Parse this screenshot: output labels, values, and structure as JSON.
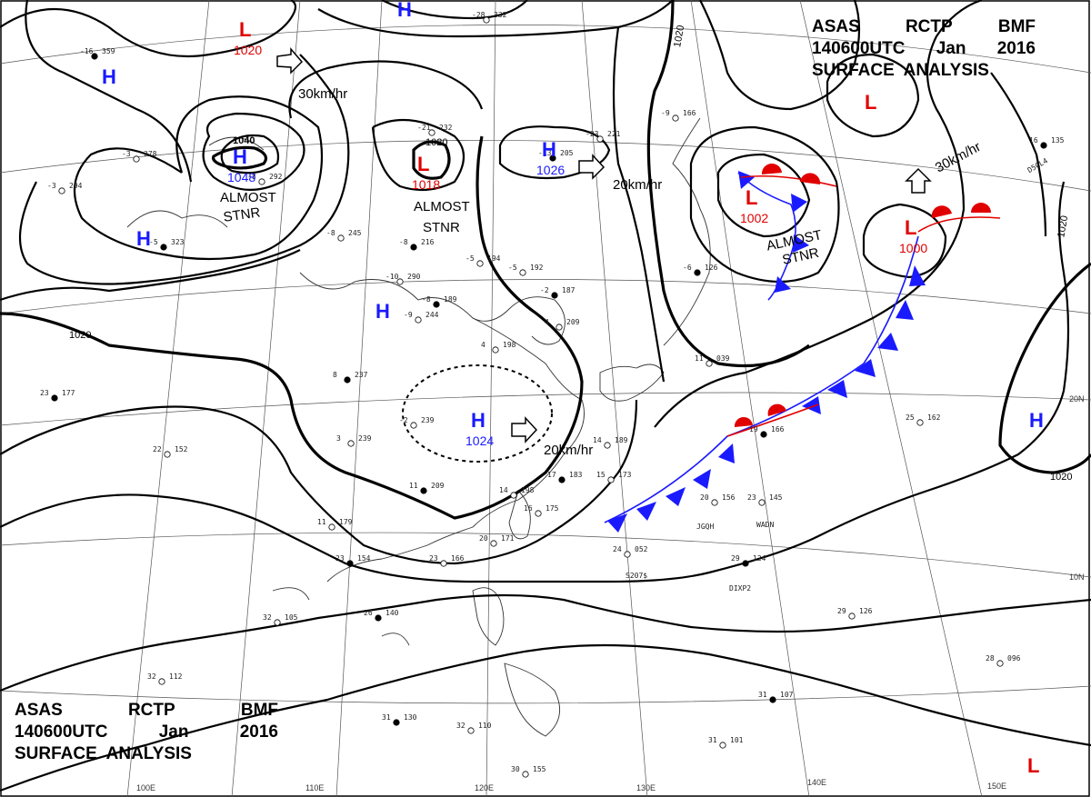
{
  "header": {
    "line1": [
      "ASAS",
      "RCTP",
      "BMF"
    ],
    "line2": [
      "140600UTC",
      "Jan",
      "2016"
    ],
    "line3": "SURFACE  ANALYSIS"
  },
  "pressure_systems": [
    {
      "type": "H",
      "value": "1048",
      "color": "#1a1aff"
    },
    {
      "type": "H",
      "value": "1026",
      "color": "#1a1aff"
    },
    {
      "type": "H",
      "value": "1024",
      "color": "#1a1aff"
    },
    {
      "type": "L",
      "value": "1020",
      "color": "#e00000"
    },
    {
      "type": "L",
      "value": "1018",
      "color": "#e00000"
    },
    {
      "type": "L",
      "value": "1002",
      "color": "#e00000"
    },
    {
      "type": "L",
      "value": "1000",
      "color": "#e00000"
    }
  ],
  "unlabeled_systems": {
    "H": "H",
    "L": "L"
  },
  "isobar_labels": [
    "1040",
    "1020"
  ],
  "motion": [
    "30km/hr",
    "20km/hr"
  ],
  "stationary_note": [
    "ALMOST",
    "STNR"
  ],
  "grid": {
    "lon": [
      "100E",
      "110E",
      "120E",
      "130E",
      "140E",
      "150E"
    ],
    "lat": [
      "20N",
      "10N"
    ]
  },
  "ship_ids": [
    "JGQH",
    "WADN",
    "DIXP2",
    "S207$",
    "D5CL4"
  ],
  "stations": [
    {
      "p": "359",
      "t": "-16"
    },
    {
      "p": "278",
      "t": "-3"
    },
    {
      "p": "294",
      "t": "-3"
    },
    {
      "p": "323",
      "t": "-5"
    },
    {
      "p": "292",
      "t": "-8"
    },
    {
      "p": "245",
      "t": "-8"
    },
    {
      "p": "216",
      "t": "-8"
    },
    {
      "p": "290",
      "t": "-10"
    },
    {
      "p": "244",
      "t": "-9"
    },
    {
      "p": "189",
      "t": "-8"
    },
    {
      "p": "194",
      "t": "-5"
    },
    {
      "p": "192",
      "t": "-5"
    },
    {
      "p": "187",
      "t": "-2"
    },
    {
      "p": "209",
      "t": "4"
    },
    {
      "p": "198",
      "t": "4"
    },
    {
      "p": "237",
      "t": "8"
    },
    {
      "p": "239",
      "t": "3"
    },
    {
      "p": "239",
      "t": "-2"
    },
    {
      "p": "209",
      "t": "11"
    },
    {
      "p": "198",
      "t": "14"
    },
    {
      "p": "175",
      "t": "16"
    },
    {
      "p": "183",
      "t": "17"
    },
    {
      "p": "173",
      "t": "15"
    },
    {
      "p": "189",
      "t": "14"
    },
    {
      "p": "177",
      "t": "23"
    },
    {
      "p": "152",
      "t": "22"
    },
    {
      "p": "179",
      "t": "11"
    },
    {
      "p": "154",
      "t": "23"
    },
    {
      "p": "166",
      "t": "23"
    },
    {
      "p": "171",
      "t": "20"
    },
    {
      "p": "140",
      "t": "26"
    },
    {
      "p": "105",
      "t": "32"
    },
    {
      "p": "112",
      "t": "32"
    },
    {
      "p": "130",
      "t": "31"
    },
    {
      "p": "110",
      "t": "32"
    },
    {
      "p": "155",
      "t": "30"
    },
    {
      "p": "166",
      "t": "19"
    },
    {
      "p": "156",
      "t": "20"
    },
    {
      "p": "145",
      "t": "23"
    },
    {
      "p": "124",
      "t": "29"
    },
    {
      "p": "126",
      "t": "29"
    },
    {
      "p": "096",
      "t": "28"
    },
    {
      "p": "107",
      "t": "31"
    },
    {
      "p": "101",
      "t": "31"
    },
    {
      "p": "162",
      "t": "25"
    },
    {
      "p": "135",
      "t": "16"
    },
    {
      "p": "232",
      "t": "-21"
    },
    {
      "p": "221",
      "t": "-23"
    },
    {
      "p": "205",
      "t": "-13"
    },
    {
      "p": "332",
      "t": "-28"
    },
    {
      "p": "166",
      "t": "-9"
    },
    {
      "p": "126",
      "t": "-6"
    },
    {
      "p": "039",
      "t": "11"
    },
    {
      "p": "052",
      "t": "24"
    }
  ],
  "colors": {
    "high": "#1a1aff",
    "low": "#e00000",
    "ink": "#000000"
  }
}
